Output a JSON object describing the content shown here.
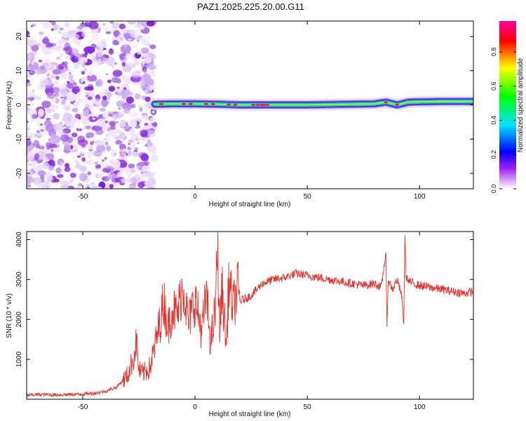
{
  "title": "PAZ1.2025.225.20.00.G11",
  "chart_data": [
    {
      "type": "heatmap",
      "xlabel": "Height of straight line (km)",
      "ylabel": "Frequency (Hz)",
      "xlim": [
        -75,
        124
      ],
      "ylim": [
        -24.5,
        24.5
      ],
      "xticks": [
        -50,
        0,
        50,
        100
      ],
      "yticks": [
        -20,
        -10,
        0,
        10,
        20
      ],
      "colorbar": {
        "label": "Normalized spectral amplitude",
        "range": [
          0,
          0.98
        ],
        "ticks": [
          0.0,
          0.2,
          0.4,
          0.6,
          0.8
        ],
        "tick_labels": [
          "0.0",
          "0.2",
          "0.4",
          "0.6",
          "0.8"
        ]
      },
      "noise_region_x": [
        -75,
        -18
      ],
      "signal_band": {
        "x": [
          -18,
          -10,
          0,
          10,
          20,
          30,
          40,
          50,
          60,
          70,
          80,
          85,
          90,
          95,
          100,
          110,
          124
        ],
        "frequency": [
          0.2,
          0.3,
          0.3,
          0.2,
          0.0,
          0.0,
          0.0,
          0.0,
          0.1,
          0.2,
          0.3,
          0.8,
          0.0,
          0.8,
          0.9,
          1.0,
          1.0
        ]
      }
    },
    {
      "type": "line",
      "xlabel": "Height of straight line (km)",
      "ylabel": "SNR (10 * v/v)",
      "xlim": [
        -75,
        124
      ],
      "ylim": [
        0,
        4200
      ],
      "xticks": [
        -50,
        0,
        50,
        100
      ],
      "yticks": [
        1000,
        2000,
        3000,
        4000
      ],
      "color": "#e8312b",
      "x": [
        -75,
        -70,
        -60,
        -50,
        -45,
        -40,
        -35,
        -30,
        -27,
        -26,
        -25,
        -23,
        -20,
        -18,
        -15,
        -14,
        -12,
        -10,
        -8,
        -6,
        -5,
        -3,
        0,
        3,
        5,
        7,
        9,
        10,
        11,
        12,
        14,
        15,
        17,
        19,
        20,
        25,
        30,
        35,
        40,
        45,
        50,
        55,
        60,
        65,
        70,
        75,
        80,
        83,
        85,
        85.5,
        86,
        88,
        90,
        92,
        93,
        93.5,
        94,
        95,
        100,
        105,
        110,
        115,
        120,
        124
      ],
      "y": [
        100,
        120,
        110,
        130,
        150,
        200,
        300,
        600,
        1100,
        1500,
        700,
        650,
        800,
        1300,
        2100,
        2500,
        1800,
        2300,
        2100,
        2700,
        2800,
        1900,
        2500,
        1700,
        2600,
        1400,
        2200,
        3850,
        1700,
        2800,
        1300,
        2950,
        2300,
        2800,
        2450,
        2600,
        2900,
        3000,
        3050,
        3150,
        3100,
        3050,
        3000,
        2950,
        2900,
        2850,
        2900,
        2800,
        3700,
        1700,
        3000,
        2750,
        3000,
        2600,
        1900,
        4200,
        3100,
        2950,
        2850,
        2800,
        2750,
        2700,
        2650,
        2700
      ]
    }
  ]
}
